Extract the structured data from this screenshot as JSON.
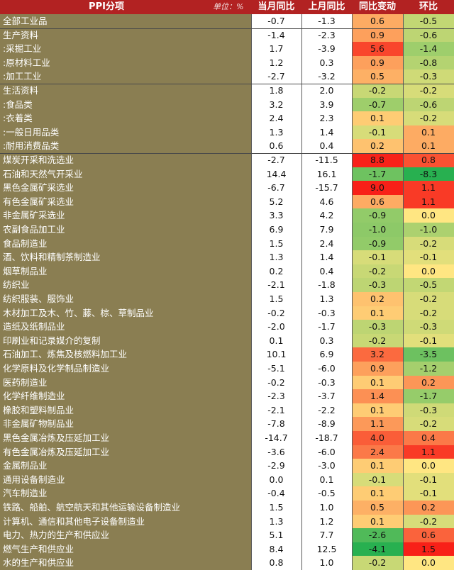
{
  "header": {
    "label": "PPI分项",
    "unit": "单位：%",
    "col1": "当月同比",
    "col2": "上月同比",
    "col3": "同比变动",
    "col4": "环比"
  },
  "chart_data": {
    "type": "table",
    "columns": [
      "PPI分项",
      "当月同比",
      "上月同比",
      "同比变动",
      "环比"
    ],
    "rows": [
      {
        "name": "全部工业品",
        "cur": "-0.7",
        "prev": "-1.3",
        "chg": "0.6",
        "mom": "-0.5"
      },
      {
        "name": "生产资料",
        "cur": "-1.4",
        "prev": "-2.3",
        "chg": "0.9",
        "mom": "-0.6"
      },
      {
        "name": ":采掘工业",
        "cur": "1.7",
        "prev": "-3.9",
        "chg": "5.6",
        "mom": "-1.4"
      },
      {
        "name": ":原材料工业",
        "cur": "1.2",
        "prev": "0.3",
        "chg": "0.9",
        "mom": "-0.8"
      },
      {
        "name": ":加工工业",
        "cur": "-2.7",
        "prev": "-3.2",
        "chg": "0.5",
        "mom": "-0.3"
      },
      {
        "name": "生活资料",
        "cur": "1.8",
        "prev": "2.0",
        "chg": "-0.2",
        "mom": "-0.2"
      },
      {
        "name": ":食品类",
        "cur": "3.2",
        "prev": "3.9",
        "chg": "-0.7",
        "mom": "-0.6"
      },
      {
        "name": ":衣着类",
        "cur": "2.4",
        "prev": "2.3",
        "chg": "0.1",
        "mom": "-0.2"
      },
      {
        "name": ":一般日用品类",
        "cur": "1.3",
        "prev": "1.4",
        "chg": "-0.1",
        "mom": "0.1"
      },
      {
        "name": ":耐用消费品类",
        "cur": "0.6",
        "prev": "0.4",
        "chg": "0.2",
        "mom": "0.1"
      },
      {
        "name": "煤炭开采和洗选业",
        "cur": "-2.7",
        "prev": "-11.5",
        "chg": "8.8",
        "mom": "0.8"
      },
      {
        "name": "石油和天然气开采业",
        "cur": "14.4",
        "prev": "16.1",
        "chg": "-1.7",
        "mom": "-8.3"
      },
      {
        "name": "黑色金属矿采选业",
        "cur": "-6.7",
        "prev": "-15.7",
        "chg": "9.0",
        "mom": "1.1"
      },
      {
        "name": "有色金属矿采选业",
        "cur": "5.2",
        "prev": "4.6",
        "chg": "0.6",
        "mom": "1.1"
      },
      {
        "name": "非金属矿采选业",
        "cur": "3.3",
        "prev": "4.2",
        "chg": "-0.9",
        "mom": "0.0"
      },
      {
        "name": "农副食品加工业",
        "cur": "6.9",
        "prev": "7.9",
        "chg": "-1.0",
        "mom": "-1.0"
      },
      {
        "name": "食品制造业",
        "cur": "1.5",
        "prev": "2.4",
        "chg": "-0.9",
        "mom": "-0.2"
      },
      {
        "name": "酒、饮料和精制茶制造业",
        "cur": "1.3",
        "prev": "1.4",
        "chg": "-0.1",
        "mom": "-0.1"
      },
      {
        "name": "烟草制品业",
        "cur": "0.2",
        "prev": "0.4",
        "chg": "-0.2",
        "mom": "0.0"
      },
      {
        "name": "纺织业",
        "cur": "-2.1",
        "prev": "-1.8",
        "chg": "-0.3",
        "mom": "-0.5"
      },
      {
        "name": "纺织服装、服饰业",
        "cur": "1.5",
        "prev": "1.3",
        "chg": "0.2",
        "mom": "-0.2"
      },
      {
        "name": "木材加工及木、竹、藤、棕、草制品业",
        "cur": "-0.2",
        "prev": "-0.3",
        "chg": "0.1",
        "mom": "-0.2"
      },
      {
        "name": "造纸及纸制品业",
        "cur": "-2.0",
        "prev": "-1.7",
        "chg": "-0.3",
        "mom": "-0.3"
      },
      {
        "name": "印刷业和记录媒介的复制",
        "cur": "0.1",
        "prev": "0.3",
        "chg": "-0.2",
        "mom": "-0.1"
      },
      {
        "name": "石油加工、炼焦及核燃料加工业",
        "cur": "10.1",
        "prev": "6.9",
        "chg": "3.2",
        "mom": "-3.5"
      },
      {
        "name": "化学原料及化学制品制造业",
        "cur": "-5.1",
        "prev": "-6.0",
        "chg": "0.9",
        "mom": "-1.2"
      },
      {
        "name": "医药制造业",
        "cur": "-0.2",
        "prev": "-0.3",
        "chg": "0.1",
        "mom": "0.2"
      },
      {
        "name": "化学纤维制造业",
        "cur": "-2.3",
        "prev": "-3.7",
        "chg": "1.4",
        "mom": "-1.7"
      },
      {
        "name": "橡胶和塑料制品业",
        "cur": "-2.1",
        "prev": "-2.2",
        "chg": "0.1",
        "mom": "-0.3"
      },
      {
        "name": "非金属矿物制品业",
        "cur": "-7.8",
        "prev": "-8.9",
        "chg": "1.1",
        "mom": "-0.2"
      },
      {
        "name": "黑色金属冶炼及压延加工业",
        "cur": "-14.7",
        "prev": "-18.7",
        "chg": "4.0",
        "mom": "0.4"
      },
      {
        "name": "有色金属冶炼及压延加工业",
        "cur": "-3.6",
        "prev": "-6.0",
        "chg": "2.4",
        "mom": "1.1"
      },
      {
        "name": "金属制品业",
        "cur": "-2.9",
        "prev": "-3.0",
        "chg": "0.1",
        "mom": "0.0"
      },
      {
        "name": "通用设备制造业",
        "cur": "0.0",
        "prev": "0.1",
        "chg": "-0.1",
        "mom": "-0.1"
      },
      {
        "name": "汽车制造业",
        "cur": "-0.4",
        "prev": "-0.5",
        "chg": "0.1",
        "mom": "-0.1"
      },
      {
        "name": "铁路、船舶、航空航天和其他运输设备制造业",
        "cur": "1.5",
        "prev": "1.0",
        "chg": "0.5",
        "mom": "0.2"
      },
      {
        "name": "计算机、通信和其他电子设备制造业",
        "cur": "1.3",
        "prev": "1.2",
        "chg": "0.1",
        "mom": "-0.2"
      },
      {
        "name": "电力、热力的生产和供应业",
        "cur": "5.1",
        "prev": "7.7",
        "chg": "-2.6",
        "mom": "0.6"
      },
      {
        "name": "燃气生产和供应业",
        "cur": "8.4",
        "prev": "12.5",
        "chg": "-4.1",
        "mom": "1.5"
      },
      {
        "name": "水的生产和供应业",
        "cur": "0.8",
        "prev": "1.0",
        "chg": "-0.2",
        "mom": "0.0"
      }
    ]
  }
}
